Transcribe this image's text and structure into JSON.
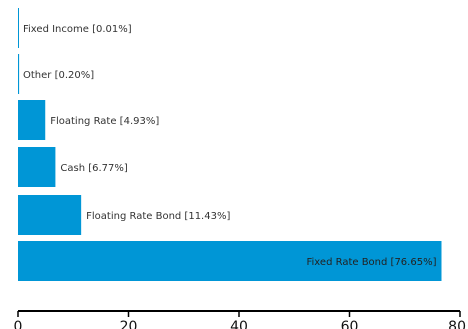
{
  "chart_data": {
    "type": "bar",
    "orientation": "horizontal",
    "categories": [
      "Fixed Income",
      "Other",
      "Floating Rate",
      "Cash",
      "Floating Rate Bond",
      "Fixed Rate Bond"
    ],
    "values": [
      0.01,
      0.2,
      4.93,
      6.77,
      11.43,
      76.65
    ],
    "labels": [
      "Fixed Income [0.01%]",
      "Other [0.20%]",
      "Floating Rate [4.93%]",
      "Cash [6.77%]",
      "Floating Rate Bond [11.43%]",
      "Fixed Rate Bond [76.65%]"
    ],
    "xlim": [
      0,
      80
    ],
    "x_ticks": [
      0,
      20,
      40,
      60,
      80
    ],
    "x_tick_labels": [
      "0",
      "20",
      "40",
      "60",
      "80"
    ],
    "title": "",
    "xlabel": "",
    "ylabel": "",
    "grid": false,
    "bar_color": "#0096d6",
    "axis_color": "#000000"
  }
}
